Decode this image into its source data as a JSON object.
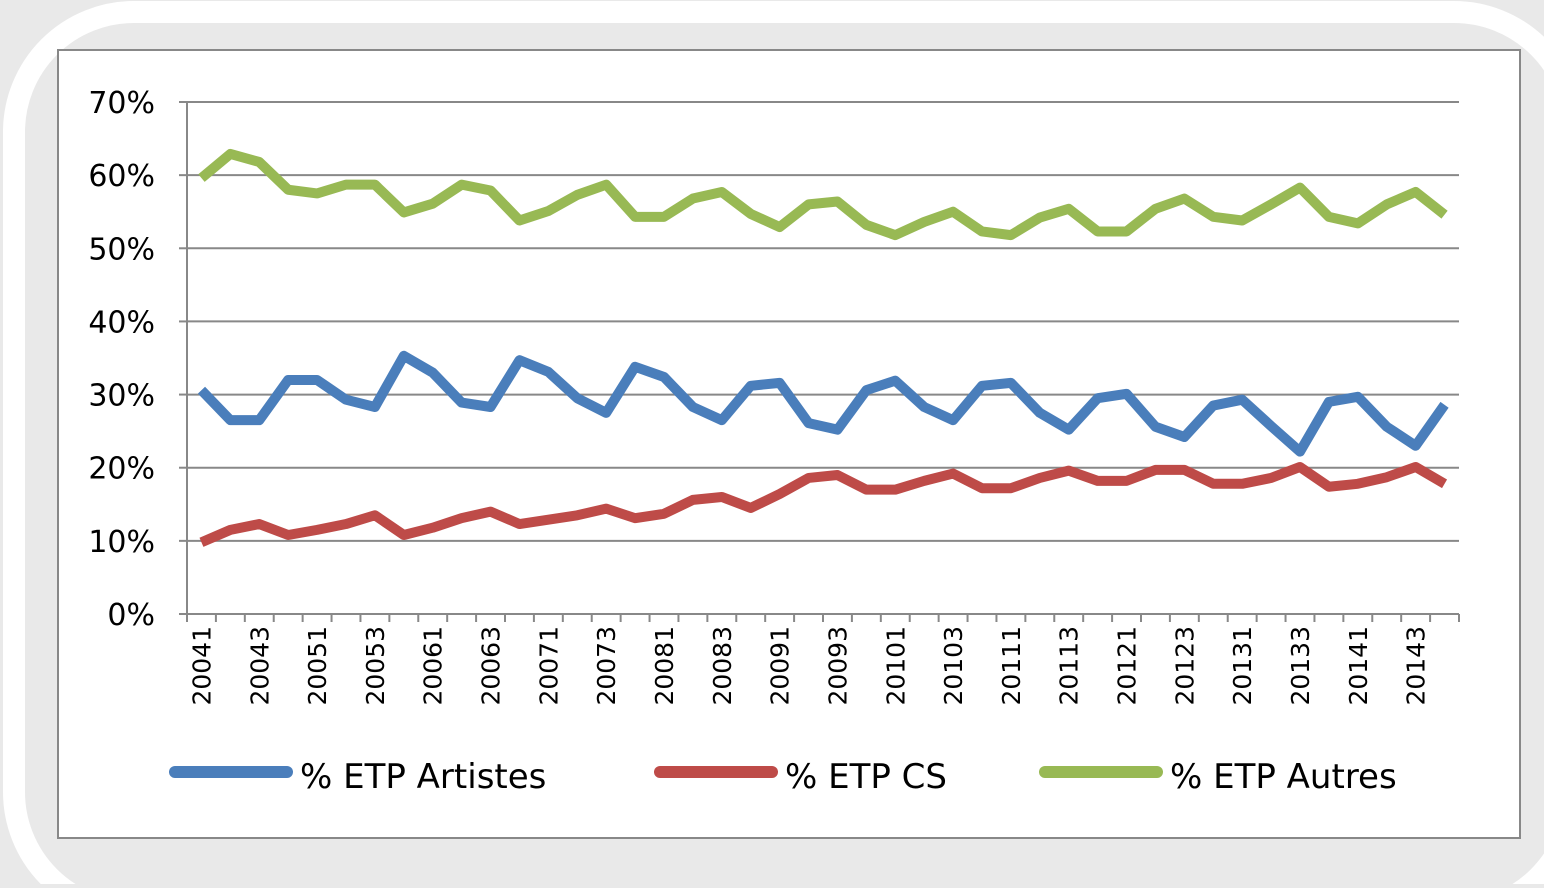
{
  "chart_data": {
    "type": "line",
    "categories": [
      "20041",
      null,
      "20043",
      null,
      "20051",
      null,
      "20053",
      null,
      "20061",
      null,
      "20063",
      null,
      "20071",
      null,
      "20073",
      null,
      "20081",
      null,
      "20083",
      null,
      "20091",
      null,
      "20093",
      null,
      "20101",
      null,
      "20103",
      null,
      "20111",
      null,
      "20113",
      null,
      "20121",
      null,
      "20123",
      null,
      "20131",
      null,
      "20133",
      null,
      "20141",
      null,
      "20143",
      null
    ],
    "series": [
      {
        "name": "% ETP Artistes",
        "color": "#4a7ebb",
        "values": [
          30.6,
          26.5,
          26.5,
          32,
          32,
          29.3,
          28.3,
          35.3,
          33,
          28.9,
          28.3,
          34.7,
          33.1,
          29.5,
          27.5,
          33.8,
          32.4,
          28.3,
          26.5,
          31.2,
          31.6,
          26.1,
          25.2,
          30.6,
          31.9,
          28.3,
          26.5,
          31.2,
          31.6,
          27.5,
          25.2,
          29.5,
          30.1,
          25.6,
          24.2,
          28.5,
          29.3,
          25.7,
          22.2,
          29,
          29.7,
          25.6,
          23,
          28.6
        ]
      },
      {
        "name": "% ETP CS",
        "color": "#be4b48",
        "values": [
          9.8,
          11.5,
          12.3,
          10.8,
          11.5,
          12.3,
          13.5,
          10.8,
          11.8,
          13.1,
          14,
          12.3,
          12.9,
          13.5,
          14.4,
          13.1,
          13.7,
          15.6,
          16,
          14.5,
          16.4,
          18.6,
          19,
          17,
          17,
          18.2,
          19.2,
          17.2,
          17.2,
          18.6,
          19.6,
          18.2,
          18.2,
          19.7,
          19.7,
          17.8,
          17.8,
          18.6,
          20.1,
          17.4,
          17.8,
          18.7,
          20.1,
          17.8
        ]
      },
      {
        "name": "% ETP Autres",
        "color": "#98b954",
        "values": [
          59.6,
          62.9,
          61.8,
          58,
          57.5,
          58.7,
          58.7,
          54.9,
          56.1,
          58.7,
          57.9,
          53.8,
          55.1,
          57.3,
          58.7,
          54.3,
          54.3,
          56.8,
          57.7,
          54.7,
          52.9,
          56,
          56.4,
          53.2,
          51.8,
          53.6,
          55,
          52.3,
          51.8,
          54.2,
          55.4,
          52.3,
          52.3,
          55.4,
          56.8,
          54.3,
          53.8,
          56,
          58.3,
          54.3,
          53.4,
          56,
          57.7,
          54.6
        ]
      }
    ],
    "ylim": [
      0,
      70
    ],
    "yticks": [
      {
        "value": 0,
        "label": "0%"
      },
      {
        "value": 10,
        "label": "10%"
      },
      {
        "value": 20,
        "label": "20%"
      },
      {
        "value": 30,
        "label": "30%"
      },
      {
        "value": 40,
        "label": "40%"
      },
      {
        "value": 50,
        "label": "50%"
      },
      {
        "value": 60,
        "label": "60%"
      },
      {
        "value": 70,
        "label": "70%"
      }
    ],
    "grid": true,
    "legend": "bottom"
  }
}
